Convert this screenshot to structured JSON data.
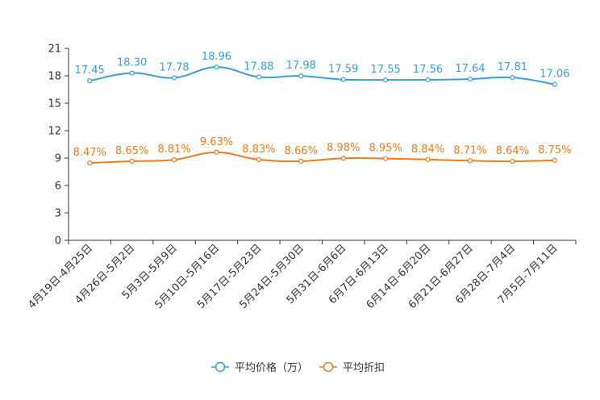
{
  "chart_data": {
    "type": "line",
    "categories": [
      "4月19日-4月25日",
      "4月26日-5月2日",
      "5月3日-5月9日",
      "5月10日-5月16日",
      "5月17日-5月23日",
      "5月24日-5月30日",
      "5月31日-6月6日",
      "6月7日-6月13日",
      "6月14日-6月20日",
      "6月21日-6月27日",
      "6月28日-7月4日",
      "7月5日-7月11日"
    ],
    "series": [
      {
        "name": "平均价格（万）",
        "values": [
          17.45,
          18.3,
          17.78,
          18.96,
          17.88,
          17.98,
          17.59,
          17.55,
          17.56,
          17.64,
          17.81,
          17.06
        ],
        "labels": [
          "17.45",
          "18.30",
          "17.78",
          "18.96",
          "17.88",
          "17.98",
          "17.59",
          "17.55",
          "17.56",
          "17.64",
          "17.81",
          "17.06"
        ],
        "color": "#3a9fcf"
      },
      {
        "name": "平均折扣",
        "values": [
          8.47,
          8.65,
          8.81,
          9.63,
          8.83,
          8.66,
          8.98,
          8.95,
          8.84,
          8.71,
          8.64,
          8.75
        ],
        "labels": [
          "8.47%",
          "8.65%",
          "8.81%",
          "9.63%",
          "8.83%",
          "8.66%",
          "8.98%",
          "8.95%",
          "8.84%",
          "8.71%",
          "8.64%",
          "8.75%"
        ],
        "color": "#f07a1e"
      }
    ],
    "yticks": [
      0,
      3,
      6,
      9,
      12,
      15,
      18,
      21
    ],
    "ylim": [
      0,
      21
    ],
    "title": "",
    "xlabel": "",
    "ylabel": "",
    "grid": false,
    "legend_position": "bottom-center"
  }
}
